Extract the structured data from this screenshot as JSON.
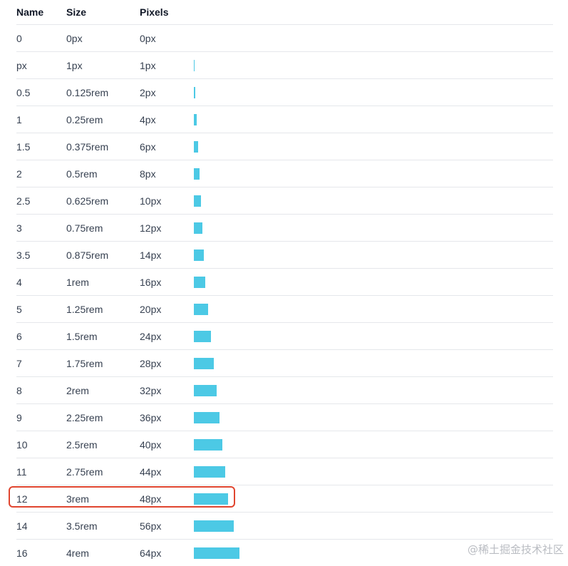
{
  "table": {
    "headers": {
      "name": "Name",
      "size": "Size",
      "pixels": "Pixels"
    },
    "bar_color": "#4cc9e5",
    "rows": [
      {
        "name": "0",
        "size": "0px",
        "pixels": "0px",
        "value": 0
      },
      {
        "name": "px",
        "size": "1px",
        "pixels": "1px",
        "value": 1
      },
      {
        "name": "0.5",
        "size": "0.125rem",
        "pixels": "2px",
        "value": 2
      },
      {
        "name": "1",
        "size": "0.25rem",
        "pixels": "4px",
        "value": 4
      },
      {
        "name": "1.5",
        "size": "0.375rem",
        "pixels": "6px",
        "value": 6
      },
      {
        "name": "2",
        "size": "0.5rem",
        "pixels": "8px",
        "value": 8
      },
      {
        "name": "2.5",
        "size": "0.625rem",
        "pixels": "10px",
        "value": 10
      },
      {
        "name": "3",
        "size": "0.75rem",
        "pixels": "12px",
        "value": 12
      },
      {
        "name": "3.5",
        "size": "0.875rem",
        "pixels": "14px",
        "value": 14
      },
      {
        "name": "4",
        "size": "1rem",
        "pixels": "16px",
        "value": 16
      },
      {
        "name": "5",
        "size": "1.25rem",
        "pixels": "20px",
        "value": 20
      },
      {
        "name": "6",
        "size": "1.5rem",
        "pixels": "24px",
        "value": 24
      },
      {
        "name": "7",
        "size": "1.75rem",
        "pixels": "28px",
        "value": 28
      },
      {
        "name": "8",
        "size": "2rem",
        "pixels": "32px",
        "value": 32
      },
      {
        "name": "9",
        "size": "2.25rem",
        "pixels": "36px",
        "value": 36
      },
      {
        "name": "10",
        "size": "2.5rem",
        "pixels": "40px",
        "value": 40
      },
      {
        "name": "11",
        "size": "2.75rem",
        "pixels": "44px",
        "value": 44
      },
      {
        "name": "12",
        "size": "3rem",
        "pixels": "48px",
        "value": 48,
        "highlighted": true
      },
      {
        "name": "14",
        "size": "3.5rem",
        "pixels": "56px",
        "value": 56
      },
      {
        "name": "16",
        "size": "4rem",
        "pixels": "64px",
        "value": 64
      }
    ]
  },
  "highlight_color": "#e0452f",
  "watermark": "@稀土掘金技术社区"
}
